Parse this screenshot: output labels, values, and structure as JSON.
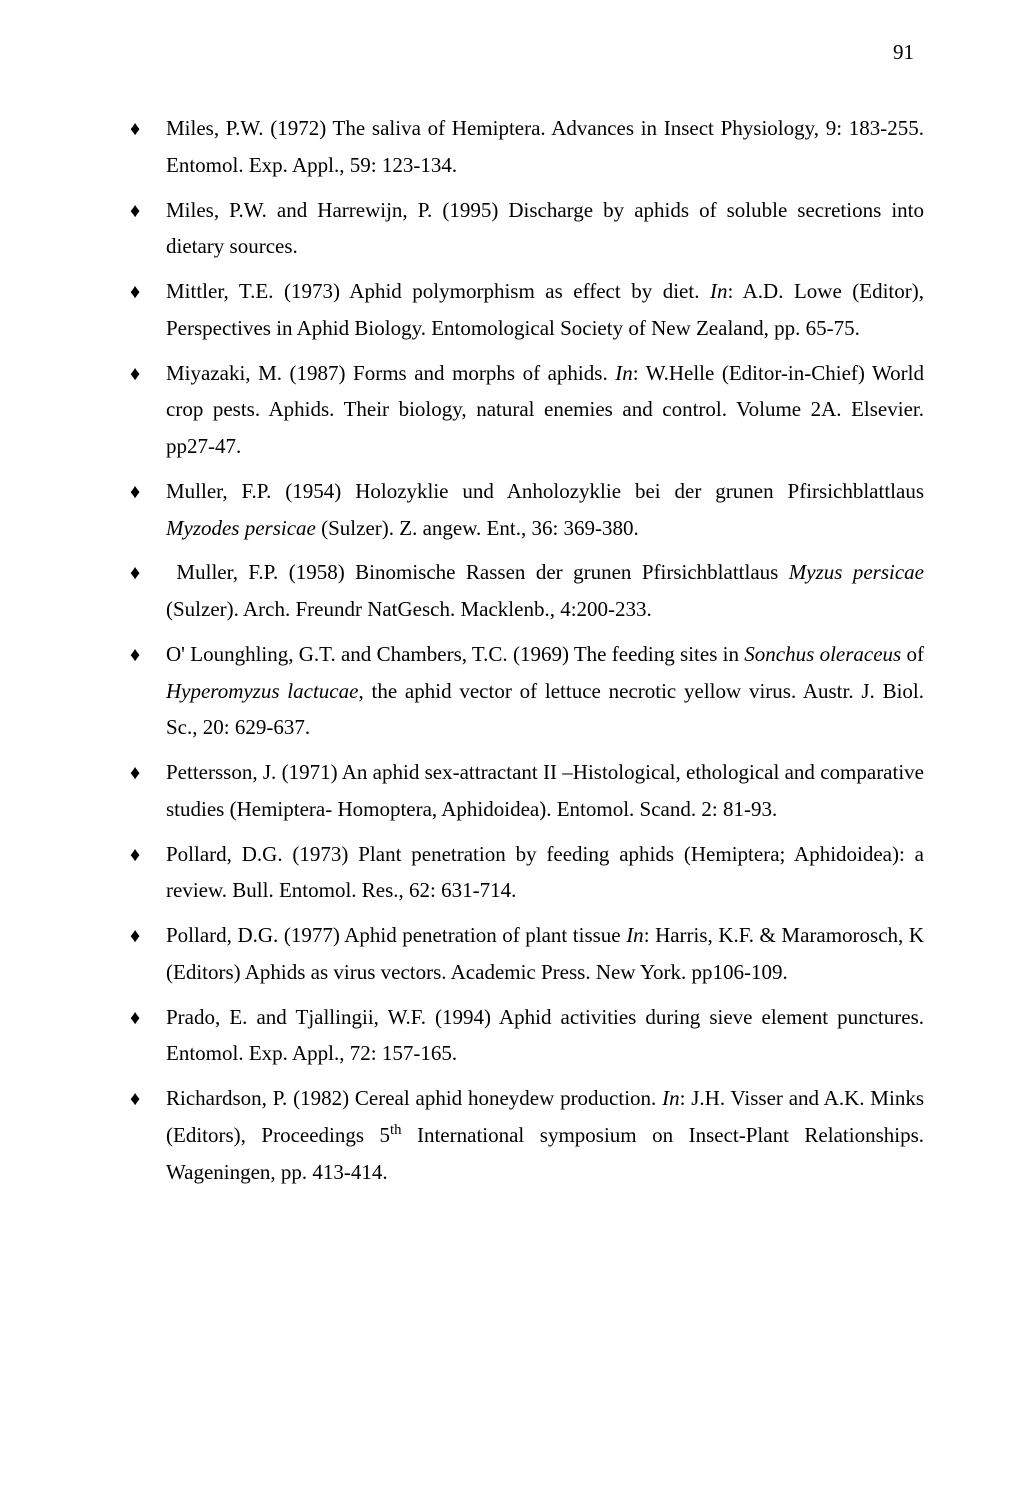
{
  "page_number": "91",
  "bullet_glyph": "♦",
  "references": [
    {
      "html": "Miles, P.W. (1972) The saliva of Hemiptera. Advances in Insect Physiology, 9: 183-255. Entomol. Exp. Appl., 59: 123-134."
    },
    {
      "html": "Miles, P.W. and Harrewijn, P. (1995) Discharge by aphids of soluble secretions into dietary sources."
    },
    {
      "html": "Mittler, T.E. (1973) Aphid polymorphism as effect by diet. <span class=\"italic\">In</span>: A.D. Lowe (Editor), Perspectives in Aphid Biology. Entomological Society of New Zealand, pp. 65-75."
    },
    {
      "html": "Miyazaki, M. (1987) Forms and morphs of aphids. <span class=\"italic\">In</span>: W.Helle (Editor-in-Chief) World crop pests. Aphids. Their biology, natural enemies and control. Volume 2A. Elsevier. pp27-47."
    },
    {
      "html": "Muller, F.P. (1954) Holozyklie und Anholozyklie bei der grunen Pfirsichblattlaus <span class=\"italic\">Myzodes persicae</span> (Sulzer). Z. angew. Ent., 36: 369-380."
    },
    {
      "html": "&nbsp;Muller, F.P. (1958) Binomische Rassen der grunen Pfirsichblattlaus <span class=\"italic\">Myzus persicae</span> (Sulzer). Arch. Freundr NatGesch. Macklenb., 4:200-233."
    },
    {
      "html": "O' Lounghling, G.T. and Chambers, T.C. (1969) The feeding sites in <span class=\"italic\">Sonchus oleraceus</span> of <span class=\"italic\">Hyperomyzus lactucae</span>, the aphid vector of lettuce necrotic yellow virus. Austr. J. Biol. Sc., 20: 629-637."
    },
    {
      "html": "Pettersson, J. (1971) An aphid sex-attractant II –Histological, ethological and comparative studies (Hemiptera- Homoptera, Aphidoidea). Entomol. Scand. 2: 81-93."
    },
    {
      "html": "Pollard, D.G. (1973) Plant penetration by feeding aphids (Hemiptera; Aphidoidea): a review. Bull. Entomol. Res., 62: 631-714."
    },
    {
      "html": "Pollard, D.G. (1977) Aphid penetration of plant tissue <span class=\"italic\">In</span>: Harris, K.F. &amp; Maramorosch, K (Editors) Aphids as virus vectors. Academic Press. New York. pp106-109."
    },
    {
      "html": "Prado, E. and Tjallingii, W.F. (1994) Aphid activities during sieve element punctures. Entomol. Exp. Appl., 72: 157-165."
    },
    {
      "html": "Richardson, P. (1982) Cereal aphid honeydew production. <span class=\"italic\">In</span>: J.H. Visser and A.K. Minks (Editors), Proceedings 5<sup>th</sup> International symposium on Insect-Plant Relationships. Wageningen, pp. 413-414."
    }
  ]
}
